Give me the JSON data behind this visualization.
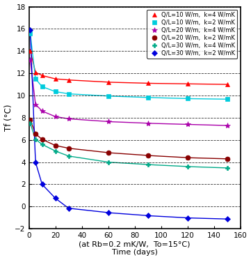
{
  "xlabel_line1": "(at Rb=0.2 mK/W,  To=15°C)",
  "xlabel_line2": "Time (days)",
  "ylabel": "Tf (°C)",
  "xlim": [
    0,
    160
  ],
  "ylim": [
    -2,
    18
  ],
  "yticks": [
    -2,
    0,
    2,
    4,
    6,
    8,
    10,
    12,
    14,
    16,
    18
  ],
  "xticks": [
    0,
    20,
    40,
    60,
    80,
    100,
    120,
    140,
    160
  ],
  "series": [
    {
      "label": "Q/L=10 W/m,  k=4 W/mK",
      "color": "#ff0000",
      "marker": "^",
      "markersize": 5,
      "markerfacecolor": "#ff0000",
      "x": [
        1,
        5,
        10,
        20,
        30,
        60,
        90,
        120,
        150
      ],
      "y": [
        14.0,
        12.1,
        11.8,
        11.5,
        11.4,
        11.2,
        11.1,
        11.05,
        11.0
      ]
    },
    {
      "label": "Q/L=10 W/m,  k=2 W/mK",
      "color": "#00ccdd",
      "marker": "s",
      "markersize": 4,
      "markerfacecolor": "#00ccdd",
      "x": [
        1,
        5,
        10,
        20,
        30,
        60,
        90,
        120,
        150
      ],
      "y": [
        15.6,
        11.5,
        10.8,
        10.35,
        10.15,
        9.95,
        9.82,
        9.72,
        9.67
      ]
    },
    {
      "label": "Q/L=20 W/m,  k=4 W/mK",
      "color": "#aa00aa",
      "marker": "*",
      "markersize": 6,
      "markerfacecolor": "#aa00aa",
      "x": [
        1,
        5,
        10,
        20,
        30,
        60,
        90,
        120,
        150
      ],
      "y": [
        13.2,
        9.2,
        8.6,
        8.1,
        7.9,
        7.65,
        7.5,
        7.4,
        7.3
      ]
    },
    {
      "label": "Q/L=20 W/m,  k=2 W/mK",
      "color": "#880000",
      "marker": "o",
      "markersize": 5,
      "markerfacecolor": "#880000",
      "x": [
        1,
        5,
        10,
        20,
        30,
        60,
        90,
        120,
        150
      ],
      "y": [
        7.8,
        6.55,
        6.05,
        5.5,
        5.25,
        4.85,
        4.6,
        4.4,
        4.3
      ]
    },
    {
      "label": "Q/L=30 W/m,  k=4 W/mK",
      "color": "#00aa88",
      "marker": "P",
      "markersize": 5,
      "markerfacecolor": "#00aa88",
      "x": [
        1,
        5,
        10,
        20,
        30,
        60,
        90,
        120,
        150
      ],
      "y": [
        7.5,
        6.05,
        5.6,
        5.0,
        4.55,
        4.0,
        3.78,
        3.6,
        3.48
      ]
    },
    {
      "label": "Q/L=30 W/m,  k=2 W/mK",
      "color": "#0000dd",
      "marker": "D",
      "markersize": 4,
      "markerfacecolor": "#0000dd",
      "x": [
        1,
        5,
        10,
        20,
        30,
        60,
        90,
        120,
        150
      ],
      "y": [
        15.9,
        4.0,
        2.0,
        0.75,
        -0.15,
        -0.55,
        -0.82,
        -1.02,
        -1.12
      ]
    }
  ],
  "figsize": [
    3.61,
    3.73
  ],
  "dpi": 100
}
